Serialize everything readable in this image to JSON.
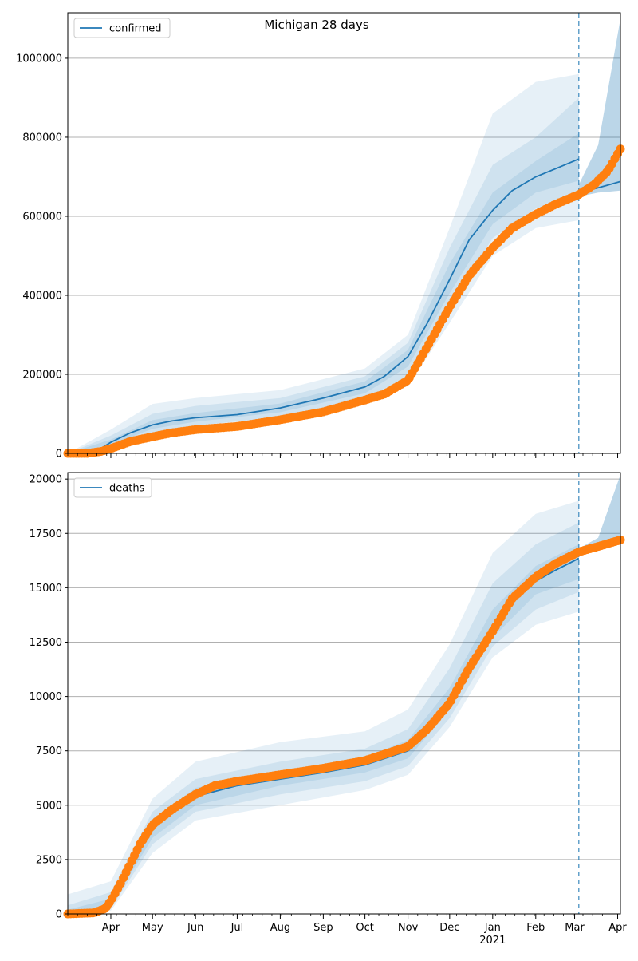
{
  "title": "Michigan 28 days",
  "colors": {
    "model": "#1f77b4",
    "observed": "#ff7f0e",
    "band": "#1f77b4",
    "grid": "#b0b0b0",
    "axis": "#000000"
  },
  "x_axis": {
    "month_ticks": [
      {
        "date": "2020-04-01",
        "label": "Apr"
      },
      {
        "date": "2020-05-01",
        "label": "May"
      },
      {
        "date": "2020-06-01",
        "label": "Jun"
      },
      {
        "date": "2020-07-01",
        "label": "Jul"
      },
      {
        "date": "2020-08-01",
        "label": "Aug"
      },
      {
        "date": "2020-09-01",
        "label": "Sep"
      },
      {
        "date": "2020-10-01",
        "label": "Oct"
      },
      {
        "date": "2020-11-01",
        "label": "Nov"
      },
      {
        "date": "2020-12-01",
        "label": "Dec"
      },
      {
        "date": "2021-01-01",
        "label": "Jan"
      },
      {
        "date": "2021-02-01",
        "label": "Feb"
      },
      {
        "date": "2021-03-01",
        "label": "Mar"
      },
      {
        "date": "2021-04-01",
        "label": "Apr"
      }
    ],
    "year_label": "2021",
    "range": [
      "2020-03-01",
      "2021-04-03"
    ],
    "forecast_start": "2021-03-04"
  },
  "chart_data": [
    {
      "type": "line",
      "legend": "confirmed",
      "legend_position": "top-left",
      "grid": "horizontal",
      "ylim": [
        0,
        1115000
      ],
      "yticks": [
        0,
        200000,
        400000,
        600000,
        800000,
        1000000
      ],
      "ytick_labels": [
        "0",
        "200000",
        "400000",
        "600000",
        "800000",
        "1000000"
      ],
      "model_median": [
        [
          "2020-03-01",
          0
        ],
        [
          "2020-03-20",
          2000
        ],
        [
          "2020-04-01",
          28000
        ],
        [
          "2020-04-15",
          52000
        ],
        [
          "2020-05-01",
          72000
        ],
        [
          "2020-05-15",
          82000
        ],
        [
          "2020-06-01",
          90000
        ],
        [
          "2020-07-01",
          98000
        ],
        [
          "2020-08-01",
          115000
        ],
        [
          "2020-09-01",
          140000
        ],
        [
          "2020-10-01",
          168000
        ],
        [
          "2020-10-15",
          195000
        ],
        [
          "2020-11-01",
          245000
        ],
        [
          "2020-11-15",
          330000
        ],
        [
          "2020-12-01",
          440000
        ],
        [
          "2020-12-15",
          540000
        ],
        [
          "2021-01-01",
          615000
        ],
        [
          "2021-01-15",
          665000
        ],
        [
          "2021-02-01",
          700000
        ],
        [
          "2021-02-15",
          720000
        ],
        [
          "2021-03-04",
          745000
        ]
      ],
      "model_median_forecast": [
        [
          "2021-03-04",
          660000
        ],
        [
          "2021-03-18",
          672000
        ],
        [
          "2021-04-03",
          688000
        ]
      ],
      "band_outer": {
        "lower": [
          [
            "2020-03-01",
            0
          ],
          [
            "2020-04-01",
            10000
          ],
          [
            "2020-05-01",
            40000
          ],
          [
            "2020-06-01",
            58000
          ],
          [
            "2020-08-01",
            80000
          ],
          [
            "2020-10-01",
            125000
          ],
          [
            "2020-11-01",
            170000
          ],
          [
            "2020-12-01",
            330000
          ],
          [
            "2021-01-01",
            500000
          ],
          [
            "2021-02-01",
            570000
          ],
          [
            "2021-03-04",
            590000
          ]
        ],
        "upper": [
          [
            "2020-03-01",
            0
          ],
          [
            "2020-04-01",
            60000
          ],
          [
            "2020-05-01",
            125000
          ],
          [
            "2020-06-01",
            140000
          ],
          [
            "2020-08-01",
            160000
          ],
          [
            "2020-10-01",
            215000
          ],
          [
            "2020-11-01",
            300000
          ],
          [
            "2020-12-01",
            570000
          ],
          [
            "2021-01-01",
            860000
          ],
          [
            "2021-02-01",
            940000
          ],
          [
            "2021-03-04",
            960000
          ]
        ]
      },
      "band_middle": {
        "lower": [
          [
            "2020-03-01",
            0
          ],
          [
            "2020-04-01",
            16000
          ],
          [
            "2020-05-01",
            52000
          ],
          [
            "2020-06-01",
            70000
          ],
          [
            "2020-08-01",
            92000
          ],
          [
            "2020-10-01",
            138000
          ],
          [
            "2020-11-01",
            195000
          ],
          [
            "2020-12-01",
            370000
          ],
          [
            "2021-01-01",
            545000
          ],
          [
            "2021-02-01",
            620000
          ],
          [
            "2021-03-04",
            640000
          ]
        ],
        "upper": [
          [
            "2020-03-01",
            0
          ],
          [
            "2020-04-01",
            45000
          ],
          [
            "2020-05-01",
            100000
          ],
          [
            "2020-06-01",
            120000
          ],
          [
            "2020-08-01",
            140000
          ],
          [
            "2020-10-01",
            195000
          ],
          [
            "2020-11-01",
            280000
          ],
          [
            "2020-12-01",
            520000
          ],
          [
            "2021-01-01",
            730000
          ],
          [
            "2021-02-01",
            800000
          ],
          [
            "2021-03-04",
            900000
          ]
        ]
      },
      "band_inner": {
        "lower": [
          [
            "2020-03-01",
            0
          ],
          [
            "2020-04-01",
            22000
          ],
          [
            "2020-05-01",
            62000
          ],
          [
            "2020-06-01",
            80000
          ],
          [
            "2020-08-01",
            104000
          ],
          [
            "2020-10-01",
            152000
          ],
          [
            "2020-11-01",
            220000
          ],
          [
            "2020-12-01",
            405000
          ],
          [
            "2021-01-01",
            580000
          ],
          [
            "2021-02-01",
            660000
          ],
          [
            "2021-03-04",
            690000
          ]
        ],
        "upper": [
          [
            "2020-03-01",
            0
          ],
          [
            "2020-04-01",
            35000
          ],
          [
            "2020-05-01",
            84000
          ],
          [
            "2020-06-01",
            102000
          ],
          [
            "2020-08-01",
            126000
          ],
          [
            "2020-10-01",
            182000
          ],
          [
            "2020-11-01",
            262000
          ],
          [
            "2020-12-01",
            480000
          ],
          [
            "2021-01-01",
            660000
          ],
          [
            "2021-02-01",
            740000
          ],
          [
            "2021-03-04",
            810000
          ]
        ]
      },
      "forecast_band": {
        "lower": [
          [
            "2021-03-04",
            650000
          ],
          [
            "2021-03-18",
            660000
          ],
          [
            "2021-04-03",
            665000
          ]
        ],
        "upper": [
          [
            "2021-03-04",
            680000
          ],
          [
            "2021-03-18",
            780000
          ],
          [
            "2021-04-03",
            1100000
          ]
        ]
      },
      "observed": [
        [
          "2020-03-01",
          0
        ],
        [
          "2020-03-15",
          0
        ],
        [
          "2020-03-25",
          5000
        ],
        [
          "2020-04-01",
          12000
        ],
        [
          "2020-04-15",
          30000
        ],
        [
          "2020-05-01",
          42000
        ],
        [
          "2020-05-15",
          52000
        ],
        [
          "2020-06-01",
          60000
        ],
        [
          "2020-07-01",
          68000
        ],
        [
          "2020-08-01",
          85000
        ],
        [
          "2020-09-01",
          105000
        ],
        [
          "2020-10-01",
          135000
        ],
        [
          "2020-10-15",
          150000
        ],
        [
          "2020-11-01",
          185000
        ],
        [
          "2020-11-15",
          270000
        ],
        [
          "2020-12-01",
          370000
        ],
        [
          "2020-12-15",
          450000
        ],
        [
          "2021-01-01",
          520000
        ],
        [
          "2021-01-15",
          570000
        ],
        [
          "2021-02-01",
          605000
        ],
        [
          "2021-02-15",
          630000
        ],
        [
          "2021-03-04",
          655000
        ],
        [
          "2021-03-15",
          680000
        ],
        [
          "2021-03-25",
          715000
        ],
        [
          "2021-04-03",
          770000
        ]
      ]
    },
    {
      "type": "line",
      "legend": "deaths",
      "legend_position": "top-left",
      "grid": "horizontal",
      "ylim": [
        0,
        20300
      ],
      "yticks": [
        0,
        2500,
        5000,
        7500,
        10000,
        12500,
        15000,
        17500,
        20000
      ],
      "ytick_labels": [
        "0",
        "2500",
        "5000",
        "7500",
        "10000",
        "12500",
        "15000",
        "17500",
        "20000"
      ],
      "model_median": [
        [
          "2020-03-01",
          0
        ],
        [
          "2020-03-20",
          50
        ],
        [
          "2020-04-01",
          500
        ],
        [
          "2020-04-15",
          2200
        ],
        [
          "2020-05-01",
          3900
        ],
        [
          "2020-05-15",
          4800
        ],
        [
          "2020-06-01",
          5400
        ],
        [
          "2020-07-01",
          5900
        ],
        [
          "2020-08-01",
          6200
        ],
        [
          "2020-09-01",
          6500
        ],
        [
          "2020-10-01",
          6850
        ],
        [
          "2020-11-01",
          7500
        ],
        [
          "2020-11-15",
          8300
        ],
        [
          "2020-12-01",
          9800
        ],
        [
          "2020-12-15",
          11500
        ],
        [
          "2021-01-01",
          13100
        ],
        [
          "2021-01-15",
          14300
        ],
        [
          "2021-02-01",
          15300
        ],
        [
          "2021-02-15",
          15800
        ],
        [
          "2021-03-04",
          16350
        ]
      ],
      "model_median_forecast": [
        [
          "2021-03-04",
          16700
        ],
        [
          "2021-03-18",
          16950
        ],
        [
          "2021-04-03",
          17250
        ]
      ],
      "band_outer": {
        "lower": [
          [
            "2020-03-01",
            0
          ],
          [
            "2020-04-01",
            150
          ],
          [
            "2020-05-01",
            2800
          ],
          [
            "2020-06-01",
            4300
          ],
          [
            "2020-08-01",
            5000
          ],
          [
            "2020-10-01",
            5700
          ],
          [
            "2020-11-01",
            6400
          ],
          [
            "2020-12-01",
            8600
          ],
          [
            "2021-01-01",
            11800
          ],
          [
            "2021-02-01",
            13300
          ],
          [
            "2021-03-04",
            13900
          ]
        ],
        "upper": [
          [
            "2020-03-01",
            900
          ],
          [
            "2020-04-01",
            1500
          ],
          [
            "2020-05-01",
            5300
          ],
          [
            "2020-06-01",
            7000
          ],
          [
            "2020-08-01",
            7900
          ],
          [
            "2020-10-01",
            8400
          ],
          [
            "2020-11-01",
            9400
          ],
          [
            "2020-12-01",
            12400
          ],
          [
            "2021-01-01",
            16600
          ],
          [
            "2021-02-01",
            18400
          ],
          [
            "2021-03-04",
            19000
          ]
        ]
      },
      "band_middle": {
        "lower": [
          [
            "2020-03-01",
            0
          ],
          [
            "2020-04-01",
            250
          ],
          [
            "2020-05-01",
            3200
          ],
          [
            "2020-06-01",
            4700
          ],
          [
            "2020-08-01",
            5500
          ],
          [
            "2020-10-01",
            6100
          ],
          [
            "2020-11-01",
            6800
          ],
          [
            "2020-12-01",
            9000
          ],
          [
            "2021-01-01",
            12300
          ],
          [
            "2021-02-01",
            14000
          ],
          [
            "2021-03-04",
            14800
          ]
        ],
        "upper": [
          [
            "2020-03-01",
            400
          ],
          [
            "2020-04-01",
            1000
          ],
          [
            "2020-05-01",
            4700
          ],
          [
            "2020-06-01",
            6200
          ],
          [
            "2020-08-01",
            7000
          ],
          [
            "2020-10-01",
            7600
          ],
          [
            "2020-11-01",
            8500
          ],
          [
            "2020-12-01",
            11300
          ],
          [
            "2021-01-01",
            15200
          ],
          [
            "2021-02-01",
            17000
          ],
          [
            "2021-03-04",
            18000
          ]
        ]
      },
      "band_inner": {
        "lower": [
          [
            "2020-03-01",
            0
          ],
          [
            "2020-04-01",
            350
          ],
          [
            "2020-05-01",
            3500
          ],
          [
            "2020-06-01",
            5000
          ],
          [
            "2020-08-01",
            5900
          ],
          [
            "2020-10-01",
            6500
          ],
          [
            "2020-11-01",
            7150
          ],
          [
            "2020-12-01",
            9400
          ],
          [
            "2021-01-01",
            12700
          ],
          [
            "2021-02-01",
            14700
          ],
          [
            "2021-03-04",
            15400
          ]
        ],
        "upper": [
          [
            "2020-03-01",
            200
          ],
          [
            "2020-04-01",
            700
          ],
          [
            "2020-05-01",
            4300
          ],
          [
            "2020-06-01",
            5800
          ],
          [
            "2020-08-01",
            6500
          ],
          [
            "2020-10-01",
            7200
          ],
          [
            "2020-11-01",
            8000
          ],
          [
            "2020-12-01",
            10400
          ],
          [
            "2021-01-01",
            14000
          ],
          [
            "2021-02-01",
            16000
          ],
          [
            "2021-03-04",
            17000
          ]
        ]
      },
      "forecast_band": {
        "lower": [
          [
            "2021-03-04",
            16600
          ],
          [
            "2021-03-18",
            16800
          ],
          [
            "2021-04-03",
            17000
          ]
        ],
        "upper": [
          [
            "2021-03-04",
            16800
          ],
          [
            "2021-03-18",
            17300
          ],
          [
            "2021-04-03",
            20200
          ]
        ]
      },
      "observed": [
        [
          "2020-03-01",
          0
        ],
        [
          "2020-03-20",
          50
        ],
        [
          "2020-03-28",
          250
        ],
        [
          "2020-04-01",
          600
        ],
        [
          "2020-04-08",
          1400
        ],
        [
          "2020-04-15",
          2300
        ],
        [
          "2020-04-22",
          3200
        ],
        [
          "2020-05-01",
          4100
        ],
        [
          "2020-05-15",
          4800
        ],
        [
          "2020-06-01",
          5500
        ],
        [
          "2020-06-15",
          5900
        ],
        [
          "2020-07-01",
          6100
        ],
        [
          "2020-08-01",
          6400
        ],
        [
          "2020-09-01",
          6700
        ],
        [
          "2020-10-01",
          7050
        ],
        [
          "2020-11-01",
          7700
        ],
        [
          "2020-11-15",
          8500
        ],
        [
          "2020-12-01",
          9700
        ],
        [
          "2020-12-15",
          11300
        ],
        [
          "2021-01-01",
          13000
        ],
        [
          "2021-01-15",
          14500
        ],
        [
          "2021-02-01",
          15500
        ],
        [
          "2021-02-15",
          16100
        ],
        [
          "2021-03-04",
          16650
        ],
        [
          "2021-03-18",
          16900
        ],
        [
          "2021-04-03",
          17200
        ]
      ]
    }
  ]
}
